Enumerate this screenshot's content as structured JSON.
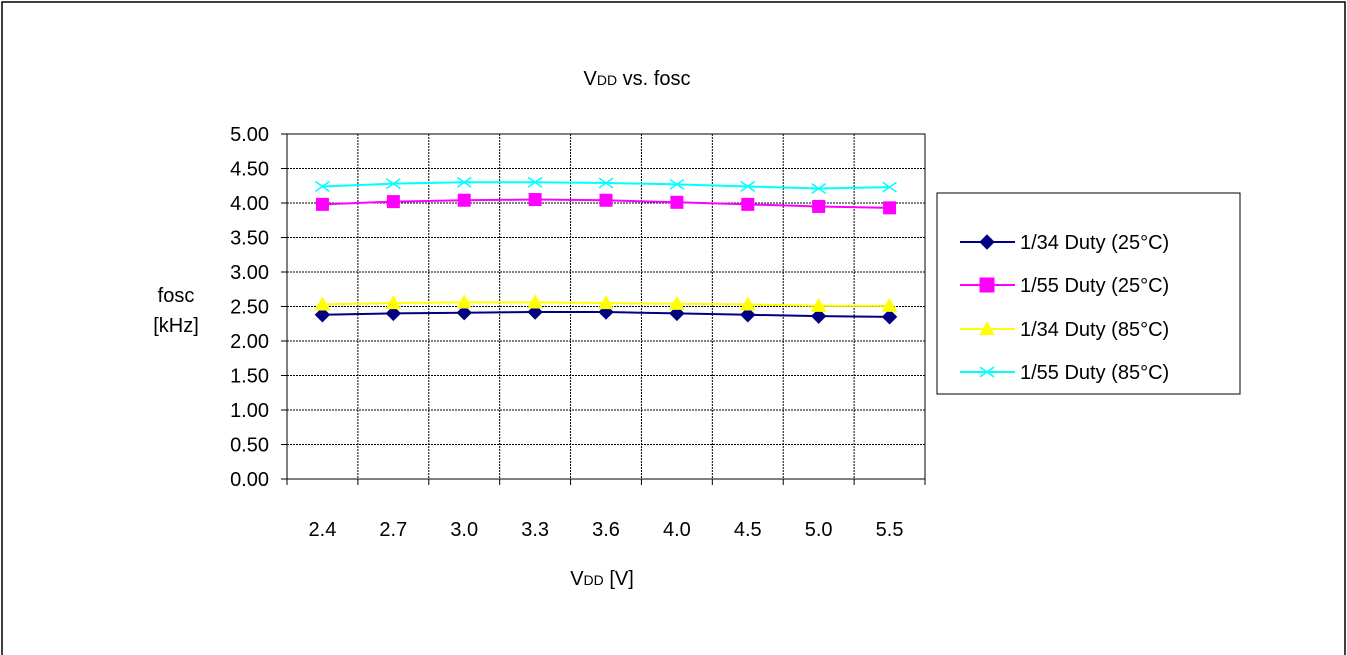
{
  "chart_data": {
    "type": "line",
    "title_main": "V",
    "title_sub": "DD",
    "title_rest": " vs. fosc",
    "xlabel_main": "V",
    "xlabel_sub": "DD",
    "xlabel_rest": " [V]",
    "ylabel_line1": "fosc",
    "ylabel_line2": "[kHz]",
    "categories": [
      "2.4",
      "2.7",
      "3.0",
      "3.3",
      "3.6",
      "4.0",
      "4.5",
      "5.0",
      "5.5"
    ],
    "y_ticks": [
      "0.00",
      "0.50",
      "1.00",
      "1.50",
      "2.00",
      "2.50",
      "3.00",
      "3.50",
      "4.00",
      "4.50",
      "5.00"
    ],
    "ylim": [
      0,
      5
    ],
    "grid": true,
    "legend_position": "right",
    "series": [
      {
        "name": "1/34 Duty (25°C)",
        "color": "#000080",
        "marker": "diamond",
        "values": [
          2.38,
          2.4,
          2.41,
          2.42,
          2.42,
          2.4,
          2.38,
          2.36,
          2.35
        ]
      },
      {
        "name": "1/55 Duty (25°C)",
        "color": "#ff00ff",
        "marker": "square",
        "values": [
          3.98,
          4.02,
          4.04,
          4.05,
          4.04,
          4.01,
          3.98,
          3.95,
          3.93
        ]
      },
      {
        "name": "1/34 Duty (85°C)",
        "color": "#ffff00",
        "marker": "triangle",
        "values": [
          2.53,
          2.55,
          2.56,
          2.56,
          2.55,
          2.54,
          2.53,
          2.51,
          2.51
        ]
      },
      {
        "name": "1/55 Duty (85°C)",
        "color": "#00ffff",
        "marker": "x",
        "values": [
          4.24,
          4.28,
          4.3,
          4.3,
          4.29,
          4.27,
          4.24,
          4.21,
          4.23
        ]
      }
    ]
  }
}
